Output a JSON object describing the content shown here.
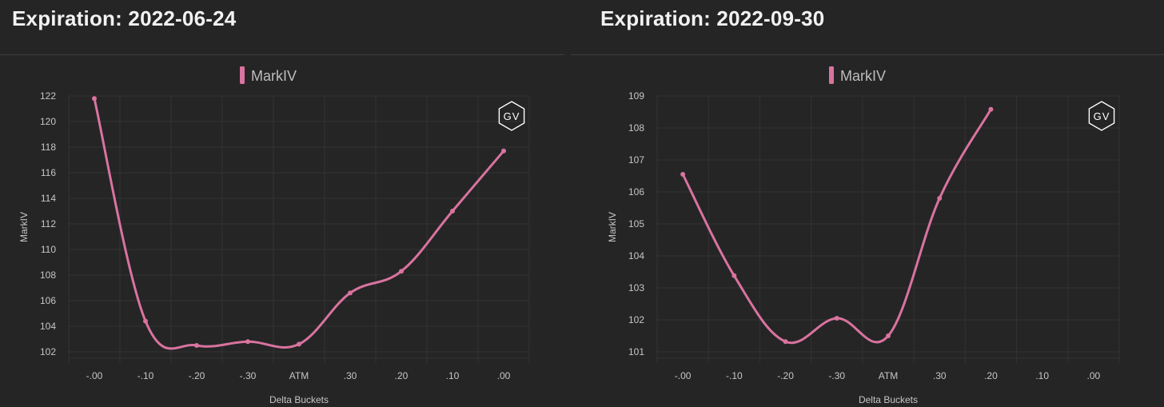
{
  "colors": {
    "background": "#252525",
    "grid": "#333333",
    "series": "#d9739f",
    "text": "#c6c6c6"
  },
  "watermark": "GV",
  "chart_data": [
    {
      "type": "line",
      "title": "Expiration: 2022-06-24",
      "xlabel": "Delta Buckets",
      "ylabel": "MarkIV",
      "legend": "top-center",
      "grid": true,
      "smooth": true,
      "categories": [
        "-.00",
        "-.10",
        "-.20",
        "-.30",
        "ATM",
        ".30",
        ".20",
        ".10",
        ".00"
      ],
      "ylim": [
        101.5,
        122
      ],
      "yticks": [
        102,
        104,
        106,
        108,
        110,
        112,
        114,
        116,
        118,
        120,
        122
      ],
      "series": [
        {
          "name": "MarkIV",
          "values": [
            121.8,
            104.4,
            102.5,
            102.8,
            102.6,
            106.6,
            108.3,
            113.0,
            117.7
          ]
        }
      ]
    },
    {
      "type": "line",
      "title": "Expiration: 2022-09-30",
      "xlabel": "Delta Buckets",
      "ylabel": "MarkIV",
      "legend": "top-center",
      "grid": true,
      "smooth": true,
      "categories": [
        "-.00",
        "-.10",
        "-.20",
        "-.30",
        "ATM",
        ".30",
        ".20",
        ".10",
        ".00"
      ],
      "ylim": [
        100.8,
        109
      ],
      "yticks": [
        101,
        102,
        103,
        104,
        105,
        106,
        107,
        108,
        109
      ],
      "series": [
        {
          "name": "MarkIV",
          "values": [
            106.55,
            103.38,
            101.32,
            102.05,
            101.5,
            105.8,
            108.58,
            null,
            null
          ]
        }
      ]
    }
  ]
}
